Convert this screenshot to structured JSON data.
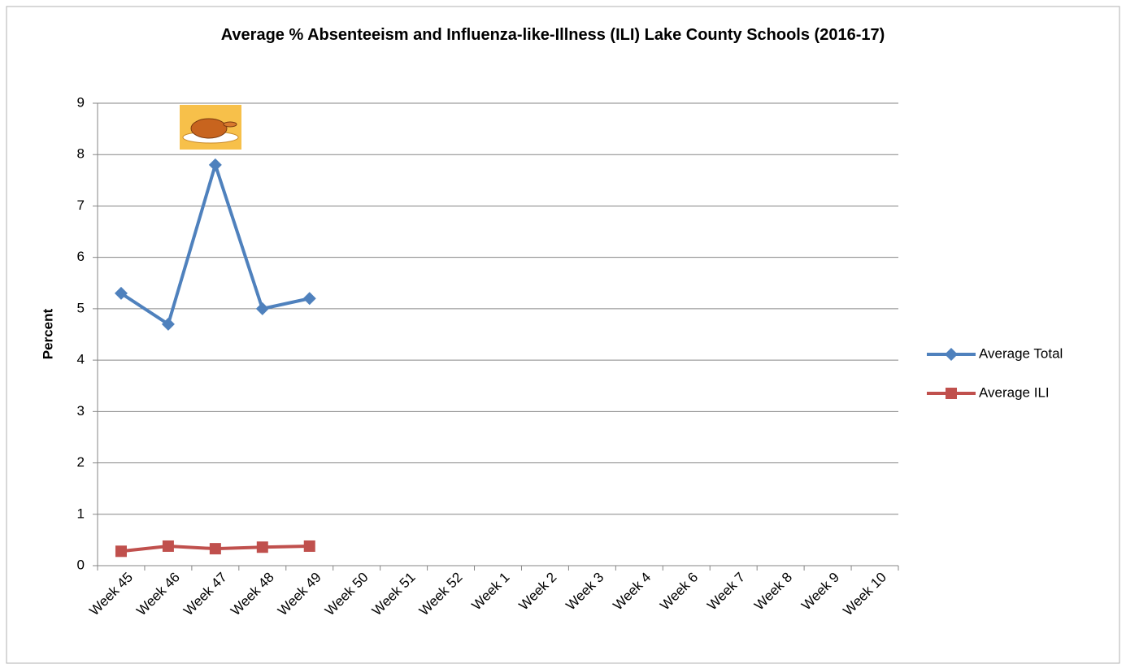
{
  "chart_data": {
    "type": "line",
    "title": "Average % Absenteeism and Influenza-like-Illness (ILI) Lake County Schools (2016-17)",
    "y_label": "Percent",
    "categories": [
      "Week 45",
      "Week 46",
      "Week 47",
      "Week 48",
      "Week 49",
      "Week 50",
      "Week 51",
      "Week 52",
      "Week 1",
      "Week 2",
      "Week 3",
      "Week 4",
      "Week 6",
      "Week 7",
      "Week 8",
      "Week 9",
      "Week 10"
    ],
    "series": [
      {
        "name": "Average Total",
        "color": "#4f81bd",
        "marker": "diamond",
        "values": [
          5.3,
          4.7,
          7.8,
          5.0,
          5.2,
          null,
          null,
          null,
          null,
          null,
          null,
          null,
          null,
          null,
          null,
          null,
          null
        ]
      },
      {
        "name": "Average ILI",
        "color": "#c0504d",
        "marker": "square",
        "values": [
          0.28,
          0.38,
          0.33,
          0.36,
          0.38,
          null,
          null,
          null,
          null,
          null,
          null,
          null,
          null,
          null,
          null,
          null,
          null
        ]
      }
    ],
    "ylim": [
      0,
      9
    ],
    "yticks": [
      0,
      1,
      2,
      3,
      4,
      5,
      6,
      7,
      8,
      9
    ],
    "grid": true,
    "legend": "right"
  }
}
